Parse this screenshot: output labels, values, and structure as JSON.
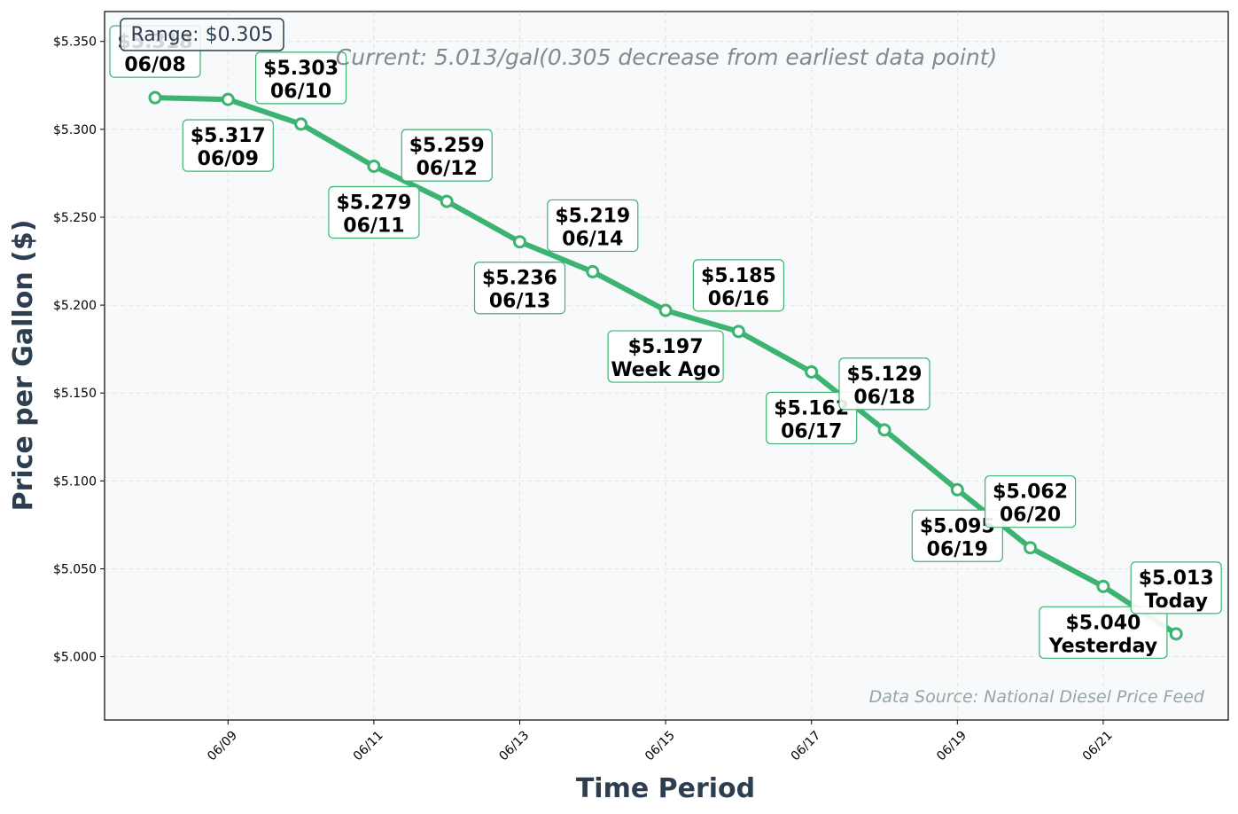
{
  "chart_data": {
    "type": "line",
    "x": [
      "06/08",
      "06/09",
      "06/10",
      "06/11",
      "06/12",
      "06/13",
      "06/14",
      "06/15",
      "06/16",
      "06/17",
      "06/18",
      "06/19",
      "06/20",
      "06/21",
      "06/22"
    ],
    "values": [
      5.318,
      5.317,
      5.303,
      5.279,
      5.259,
      5.236,
      5.219,
      5.197,
      5.185,
      5.162,
      5.129,
      5.095,
      5.062,
      5.04,
      5.013
    ],
    "point_labels": [
      {
        "price": "$5.318",
        "tag": "06/08"
      },
      {
        "price": "$5.317",
        "tag": "06/09"
      },
      {
        "price": "$5.303",
        "tag": "06/10"
      },
      {
        "price": "$5.279",
        "tag": "06/11"
      },
      {
        "price": "$5.259",
        "tag": "06/12"
      },
      {
        "price": "$5.236",
        "tag": "06/13"
      },
      {
        "price": "$5.219",
        "tag": "06/14"
      },
      {
        "price": "$5.197",
        "tag": "Week Ago"
      },
      {
        "price": "$5.185",
        "tag": "06/16"
      },
      {
        "price": "$5.162",
        "tag": "06/17"
      },
      {
        "price": "$5.129",
        "tag": "06/18"
      },
      {
        "price": "$5.095",
        "tag": "06/19"
      },
      {
        "price": "$5.062",
        "tag": "06/20"
      },
      {
        "price": "$5.040",
        "tag": "Yesterday"
      },
      {
        "price": "$5.013",
        "tag": "Today"
      }
    ],
    "x_ticks": [
      "06/09",
      "06/11",
      "06/13",
      "06/15",
      "06/17",
      "06/19",
      "06/21"
    ],
    "y_ticks": [
      "$5.000",
      "$5.050",
      "$5.100",
      "$5.150",
      "$5.200",
      "$5.250",
      "$5.300",
      "$5.350"
    ],
    "ylim": [
      4.964,
      5.367
    ],
    "xlabel": "Time Period",
    "ylabel": "Price per Gallon ($)",
    "subtitle": "Current: 5.013/gal(0.305 decrease from earliest data point)",
    "range_label": "Range: $0.305",
    "source": "Data Source: National Diesel Price Feed",
    "grid": true,
    "colors": {
      "line": "#3cb371",
      "marker_fill": "#ffffff",
      "plot_background": "#f8f9fa",
      "axis_title": "#2c3e50",
      "callout_border": "#3cb371"
    }
  }
}
